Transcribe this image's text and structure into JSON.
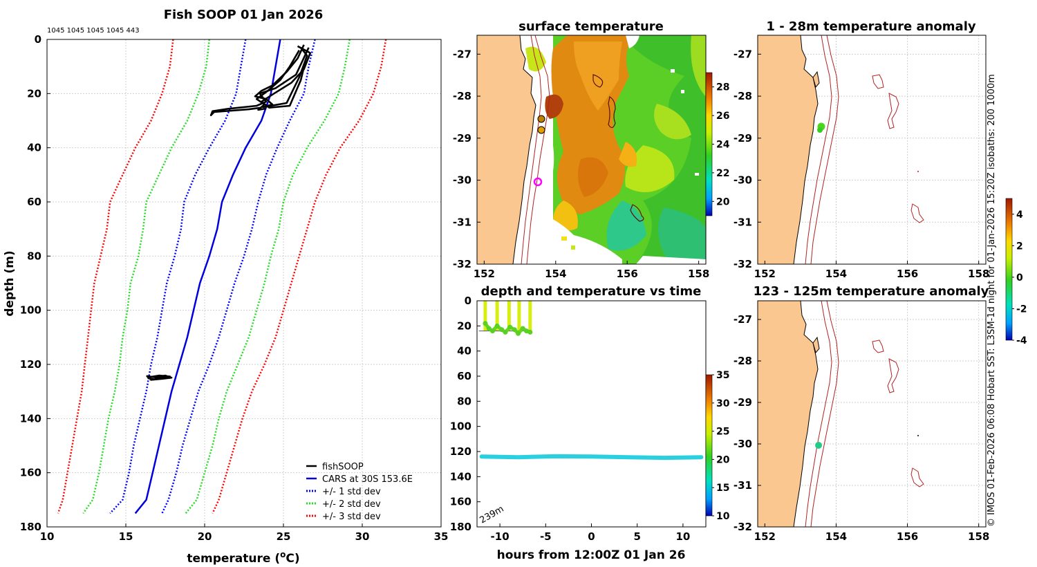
{
  "side_note": "© IMOS 01-Feb-2026 06:08 Hobart SST: L3SM-1d night for 01-Jan-2026 15:20Z isobaths: 200  1000m",
  "chart_data": [
    {
      "id": "profile",
      "type": "line",
      "title": "Fish SOOP 01 Jan 2026",
      "subtitle": "1045 1045 1045 1045 443",
      "xlabel": "temperature (",
      "xlabel_sup": "o",
      "xlabel_end": "C)",
      "ylabel": "depth (m)",
      "xlim": [
        10,
        35
      ],
      "ylim": [
        180,
        0
      ],
      "xticks": [
        "10",
        "15",
        "20",
        "25",
        "30",
        "35"
      ],
      "yticks": [
        "0",
        "20",
        "40",
        "60",
        "80",
        "100",
        "120",
        "140",
        "160",
        "180"
      ],
      "grid": true,
      "legend_position": "bottom-right",
      "depth": [
        0,
        10,
        20,
        30,
        40,
        50,
        60,
        70,
        80,
        90,
        100,
        110,
        120,
        130,
        140,
        150,
        160,
        170,
        175
      ],
      "series": [
        {
          "name": "CARS at 30S 153.6E",
          "color": "#0000dd",
          "style": "solid",
          "values": [
            24.8,
            24.5,
            24.2,
            23.6,
            22.6,
            21.8,
            21.1,
            20.8,
            20.3,
            19.7,
            19.3,
            18.9,
            18.4,
            17.9,
            17.5,
            17.1,
            16.7,
            16.3,
            15.6
          ]
        },
        {
          "name": "+/- 1 std dev",
          "color": "#0000ff",
          "style": "dotted",
          "values_low": [
            22.6,
            22.3,
            22.0,
            21.3,
            20.3,
            19.4,
            18.7,
            18.5,
            18.1,
            17.6,
            17.3,
            17.0,
            16.6,
            16.3,
            15.9,
            15.5,
            15.2,
            14.8,
            14.0
          ],
          "values_high": [
            27.0,
            26.6,
            26.3,
            25.4,
            24.6,
            23.9,
            23.4,
            23.0,
            22.5,
            21.9,
            21.4,
            20.9,
            20.3,
            19.6,
            19.1,
            18.6,
            18.2,
            17.7,
            17.3
          ]
        },
        {
          "name": "+/- 2 std dev",
          "color": "#22dd22",
          "style": "dotted",
          "values_low": [
            20.3,
            20.1,
            19.6,
            18.9,
            17.9,
            17.1,
            16.3,
            16.1,
            15.8,
            15.3,
            15.1,
            14.8,
            14.6,
            14.3,
            13.9,
            13.6,
            13.3,
            12.9,
            12.3
          ],
          "values_high": [
            29.2,
            28.9,
            28.5,
            27.6,
            26.5,
            25.6,
            25.0,
            24.7,
            24.2,
            23.8,
            23.3,
            22.8,
            22.1,
            21.4,
            20.9,
            20.5,
            20.0,
            19.5,
            18.8
          ]
        },
        {
          "name": "+/- 3 std dev",
          "color": "#ff0000",
          "style": "dotted",
          "values_low": [
            18.0,
            17.8,
            17.3,
            16.6,
            15.6,
            14.8,
            14.0,
            13.8,
            13.4,
            13.0,
            12.8,
            12.6,
            12.4,
            12.2,
            11.9,
            11.6,
            11.3,
            11.0,
            10.7
          ],
          "values_high": [
            31.5,
            31.2,
            30.7,
            29.8,
            28.6,
            27.7,
            27.0,
            26.5,
            26.0,
            25.5,
            25.0,
            24.5,
            23.8,
            23.0,
            22.4,
            21.9,
            21.4,
            20.9,
            20.5
          ]
        },
        {
          "name": "fishSOOP",
          "color": "#000000",
          "style": "solid",
          "tracks": [
            [
              [
                26.3,
                2
              ],
              [
                25.9,
                7
              ],
              [
                25.2,
                12
              ],
              [
                24.3,
                17
              ],
              [
                23.6,
                19
              ],
              [
                23.2,
                21
              ],
              [
                23.9,
                22
              ],
              [
                24.3,
                24
              ],
              [
                23.7,
                25
              ],
              [
                25.2,
                23.5
              ],
              [
                26.0,
                14
              ],
              [
                26.5,
                6
              ],
              [
                26.1,
                3
              ]
            ],
            [
              [
                26.6,
                3
              ],
              [
                26.2,
                8
              ],
              [
                25.8,
                13
              ],
              [
                24.5,
                18
              ],
              [
                23.5,
                20
              ],
              [
                23.9,
                23
              ],
              [
                23.3,
                24.5
              ],
              [
                21.5,
                25.6
              ],
              [
                20.5,
                26.5
              ],
              [
                20.4,
                28
              ],
              [
                20.6,
                26.8
              ],
              [
                22.8,
                25.8
              ],
              [
                23.6,
                25.2
              ]
            ],
            [
              [
                26.0,
                4
              ],
              [
                25.4,
                10
              ],
              [
                24.8,
                15
              ],
              [
                24.0,
                19
              ],
              [
                23.3,
                22
              ],
              [
                23.8,
                24
              ],
              [
                23.4,
                26
              ],
              [
                23.9,
                25.5
              ]
            ],
            [
              [
                25.9,
                2.5
              ],
              [
                26.7,
                5
              ],
              [
                26.3,
                11
              ],
              [
                25.5,
                16
              ],
              [
                24.4,
                20
              ],
              [
                23.6,
                23
              ],
              [
                24.1,
                25.2
              ],
              [
                25.4,
                24.5
              ],
              [
                26.1,
                15
              ],
              [
                26.4,
                8
              ]
            ],
            [
              [
                16.3,
                124.3
              ],
              [
                16.9,
                124.8
              ],
              [
                17.5,
                124.1
              ],
              [
                17.9,
                124.9
              ],
              [
                17.3,
                125.3
              ],
              [
                16.6,
                125.7
              ],
              [
                16.4,
                124.8
              ],
              [
                17.1,
                124.1
              ],
              [
                17.8,
                124.5
              ],
              [
                16.8,
                125.5
              ],
              [
                16.4,
                125.1
              ]
            ]
          ]
        }
      ]
    },
    {
      "id": "sst_map",
      "type": "heatmap",
      "title": "surface temperature",
      "lon_range": [
        151.8,
        158.2
      ],
      "lat_range": [
        -32,
        -26.5
      ],
      "xticks": [
        "152",
        "154",
        "156",
        "158"
      ],
      "yticks": [
        "-27",
        "-28",
        "-29",
        "-30",
        "-31",
        "-32"
      ],
      "colorbar_range": [
        19,
        29
      ],
      "colorbar_ticks": [
        "20",
        "22",
        "24",
        "26",
        "28"
      ],
      "vessel_position": {
        "lon": 153.6,
        "lat": -30.0
      }
    },
    {
      "id": "time_series",
      "type": "scatter",
      "title": "depth and temperature vs time",
      "xlabel": "hours from 12:00Z 01 Jan 26",
      "xlim": [
        -12.5,
        12.5
      ],
      "ylim": [
        180,
        0
      ],
      "xticks": [
        "-10",
        "-5",
        "0",
        "5",
        "10"
      ],
      "yticks": [
        "0",
        "20",
        "40",
        "60",
        "80",
        "100",
        "120",
        "140",
        "160",
        "180"
      ],
      "bottom_label": "239m",
      "colorbar_range": [
        10,
        35
      ],
      "colorbar_ticks": [
        "10",
        "15",
        "20",
        "25",
        "30",
        "35"
      ],
      "shallow_track": {
        "hours": [
          -11.6,
          -11.2,
          -10.8,
          -10.3,
          -9.8,
          -9.4,
          -8.9,
          -8.4,
          -8.0,
          -7.5,
          -7.1,
          -6.7
        ],
        "depth": [
          18.0,
          22.0,
          24.0,
          20.0,
          23.0,
          25.0,
          21.0,
          23.0,
          26.0,
          22.0,
          24.0,
          25.0
        ]
      },
      "deep_track": {
        "hours": [
          -12.0,
          -8.0,
          -4.0,
          0.0,
          4.0,
          8.0,
          12.0
        ],
        "depth": [
          124.0,
          124.5,
          123.8,
          124.0,
          124.5,
          125.0,
          124.5
        ]
      }
    },
    {
      "id": "anomaly_upper",
      "type": "heatmap",
      "title": "1 - 28m temperature anomaly",
      "xticks": [
        "152",
        "154",
        "156",
        "158"
      ],
      "yticks": [
        "-27",
        "-28",
        "-29",
        "-30",
        "-31",
        "-32"
      ],
      "colorbar_range": [
        -4,
        5
      ],
      "colorbar_ticks": [
        "-4",
        "-2",
        "0",
        "2",
        "4"
      ],
      "point": {
        "lon": 153.6,
        "lat": -28.7,
        "anomaly": 0.5
      }
    },
    {
      "id": "anomaly_lower",
      "type": "heatmap",
      "title": "123 - 125m temperature anomaly",
      "xticks": [
        "152",
        "154",
        "156",
        "158"
      ],
      "yticks": [
        "-27",
        "-28",
        "-29",
        "-30",
        "-31",
        "-32"
      ],
      "point": {
        "lon": 153.55,
        "lat": -30.0,
        "anomaly": -1.2
      }
    }
  ],
  "legend": [
    {
      "label": "fishSOOP",
      "color": "#000000",
      "style": "solid"
    },
    {
      "label": "CARS at 30S 153.6E",
      "color": "#0000dd",
      "style": "solid"
    },
    {
      "label": "+/- 1 std dev",
      "color": "#0000ff",
      "style": "dotted"
    },
    {
      "label": "+/- 2 std dev",
      "color": "#22dd22",
      "style": "dotted"
    },
    {
      "label": "+/- 3 std dev",
      "color": "#ff0000",
      "style": "dotted"
    }
  ],
  "colors": {
    "land": "#f9c78f",
    "coast": "#000000",
    "isobath": "#b22222",
    "vessel": "#ff00ff"
  }
}
